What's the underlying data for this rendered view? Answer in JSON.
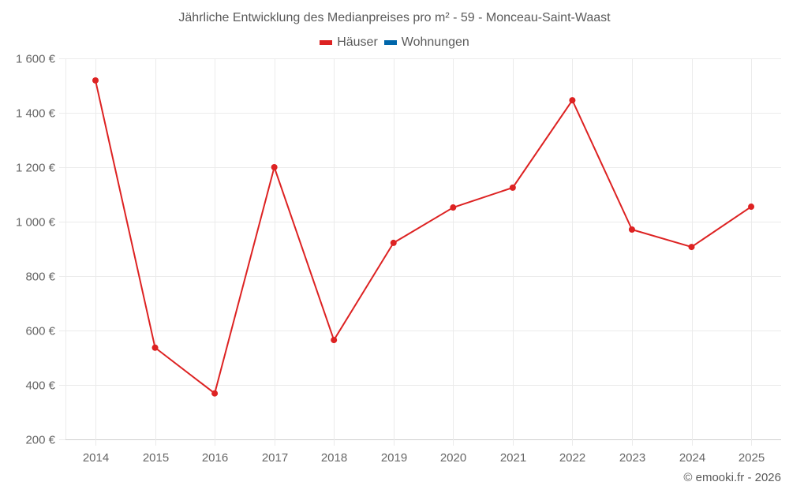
{
  "title": "Jährliche Entwicklung des Medianpreises pro m² - 59 - Monceau-Saint-Waast",
  "legend": [
    {
      "label": "Häuser",
      "color": "#dd2222"
    },
    {
      "label": "Wohnungen",
      "color": "#0066aa"
    }
  ],
  "credit": "© emooki.fr - 2026",
  "colors": {
    "grid": "#ebebeb",
    "axis": "#d0d0d0",
    "houses": "#dd2222",
    "apartments": "#0066aa"
  },
  "chart_data": {
    "type": "line",
    "title": "Jährliche Entwicklung des Medianpreises pro m² - 59 - Monceau-Saint-Waast",
    "xlabel": "",
    "ylabel": "",
    "categories": [
      "2014",
      "2015",
      "2016",
      "2017",
      "2018",
      "2019",
      "2020",
      "2021",
      "2022",
      "2023",
      "2024",
      "2025"
    ],
    "series": [
      {
        "name": "Häuser",
        "color": "#dd2222",
        "values": [
          1519,
          537,
          369,
          1200,
          565,
          922,
          1052,
          1125,
          1446,
          971,
          907,
          1055
        ]
      },
      {
        "name": "Wohnungen",
        "color": "#0066aa",
        "values": []
      }
    ],
    "ylim": [
      200,
      1600
    ],
    "yticks": [
      200,
      400,
      600,
      800,
      1000,
      1200,
      1400,
      1600
    ],
    "ytick_labels": [
      "200 €",
      "400 €",
      "600 €",
      "800 €",
      "1 000 €",
      "1 200 €",
      "1 400 €",
      "1 600 €"
    ],
    "grid": true,
    "legend_position": "top"
  }
}
